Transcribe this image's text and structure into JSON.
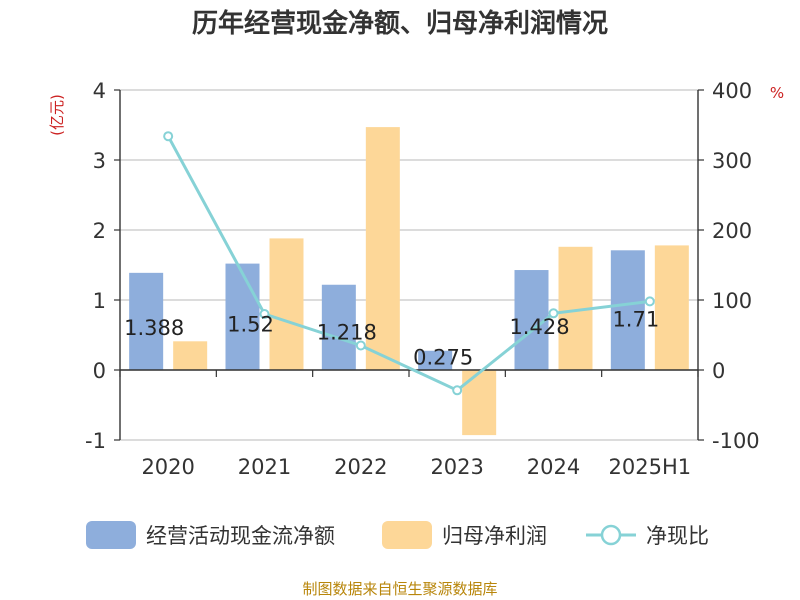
{
  "chart_data": {
    "type": "bar",
    "title": "历年经营现金净额、归母净利润情况",
    "categories": [
      "2020",
      "2021",
      "2022",
      "2023",
      "2024",
      "2025H1"
    ],
    "y_left": {
      "unit": "(亿元)",
      "ylim": [
        -1,
        4
      ],
      "ticks": [
        -1,
        0,
        1,
        2,
        3,
        4
      ]
    },
    "y_right": {
      "unit": "%",
      "ylim": [
        -100,
        400
      ],
      "ticks": [
        -100,
        0,
        100,
        200,
        300,
        400
      ]
    },
    "series": [
      {
        "name": "经营活动现金流净额",
        "type": "bar",
        "axis": "left",
        "color": "#8eaedc",
        "values": [
          1.388,
          1.52,
          1.218,
          0.275,
          1.428,
          1.71
        ],
        "labels": [
          "1.388",
          "1.52",
          "1.218",
          "0.275",
          "1.428",
          "1.71"
        ]
      },
      {
        "name": "归母净利润",
        "type": "bar",
        "axis": "left",
        "color": "#fdd798",
        "values": [
          0.41,
          1.88,
          3.47,
          -0.93,
          1.76,
          1.78
        ]
      },
      {
        "name": "净现比",
        "type": "line",
        "axis": "right",
        "color": "#86d2d6",
        "values": [
          334,
          80,
          35,
          -29,
          81,
          98
        ]
      }
    ],
    "grid": true,
    "legend_position": "bottom"
  },
  "source": "制图数据来自恒生聚源数据库"
}
